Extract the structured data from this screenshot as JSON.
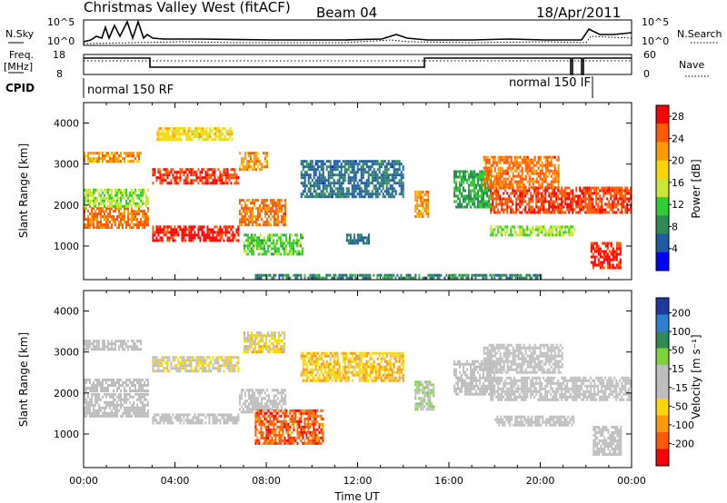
{
  "header": {
    "title": "Christmas Valley West (fitACF)",
    "beam": "Beam 04",
    "date": "18/Apr/2011"
  },
  "top_panels": {
    "nsky_label": "N.Sky",
    "nsearch_label": "N.Search",
    "nsky_ticks": [
      "10^5",
      "10^0"
    ],
    "nsearch_ticks": [
      "10^5",
      "10^0"
    ],
    "freq_label_1": "Freq.",
    "freq_label_2": "[MHz]",
    "freq_ticks": [
      "18",
      "8"
    ],
    "nave_label": "Nave",
    "nave_ticks": [
      "60",
      "0"
    ],
    "cpid_label": "CPID",
    "cpid_segments": [
      {
        "label": "normal 150 RF",
        "start_hour": 0.0,
        "end_hour": 21.7
      },
      {
        "label": "normal 150 IF",
        "start_hour": 21.7,
        "end_hour": 24.0
      }
    ]
  },
  "colors": {
    "power_scale": [
      "#0000ff",
      "#1e5aa0",
      "#2e8b57",
      "#32cd32",
      "#c8e632",
      "#ffd700",
      "#ff9900",
      "#ff5a00",
      "#ff0000"
    ],
    "velocity_scale": [
      "#1f3a9e",
      "#2d7fd0",
      "#2e8b57",
      "#7cd33a",
      "#bebebe",
      "#bebebe",
      "#ffd700",
      "#ff9900",
      "#ff5a00",
      "#ff0000"
    ]
  },
  "chart_data": [
    {
      "type": "heatmap",
      "panel": "power",
      "ylabel": "Slant Range [km]",
      "xlabel": "",
      "ylim": [
        180,
        4500
      ],
      "yticks": [
        "1000",
        "2000",
        "3000",
        "4000"
      ],
      "xlim_hours": [
        0,
        24
      ],
      "colorbar": {
        "label": "Power [dB]",
        "ticks": [
          "4",
          "8",
          "12",
          "16",
          "20",
          "24",
          "28"
        ],
        "range": [
          0,
          30
        ]
      },
      "bands": [
        {
          "t0": 0.0,
          "t1": 2.8,
          "r0": 1450,
          "r1": 1950,
          "value": 24
        },
        {
          "t0": 0.0,
          "t1": 2.8,
          "r0": 2000,
          "r1": 2400,
          "value": 14
        },
        {
          "t0": 0.0,
          "t1": 2.5,
          "r0": 3050,
          "r1": 3300,
          "value": 22
        },
        {
          "t0": 3.0,
          "t1": 6.8,
          "r0": 1150,
          "r1": 1500,
          "value": 28
        },
        {
          "t0": 6.8,
          "t1": 8.8,
          "r0": 1550,
          "r1": 2150,
          "value": 24
        },
        {
          "t0": 3.0,
          "t1": 6.8,
          "r0": 2550,
          "r1": 2900,
          "value": 26
        },
        {
          "t0": 6.8,
          "t1": 8.0,
          "r0": 2900,
          "r1": 3300,
          "value": 22
        },
        {
          "t0": 3.2,
          "t1": 6.5,
          "r0": 3600,
          "r1": 3900,
          "value": 18
        },
        {
          "t0": 7.0,
          "t1": 9.6,
          "r0": 800,
          "r1": 1300,
          "value": 12
        },
        {
          "t0": 9.5,
          "t1": 14.0,
          "r0": 2200,
          "r1": 3100,
          "value": 6
        },
        {
          "t0": 14.5,
          "t1": 15.1,
          "r0": 1750,
          "r1": 2350,
          "value": 22
        },
        {
          "t0": 16.2,
          "t1": 17.8,
          "r0": 1950,
          "r1": 2850,
          "value": 10
        },
        {
          "t0": 17.8,
          "t1": 24.0,
          "r0": 1800,
          "r1": 2450,
          "value": 26
        },
        {
          "t0": 17.5,
          "t1": 20.8,
          "r0": 2450,
          "r1": 3200,
          "value": 24
        },
        {
          "t0": 17.8,
          "t1": 21.5,
          "r0": 1250,
          "r1": 1500,
          "value": 14
        },
        {
          "t0": 22.2,
          "t1": 23.5,
          "r0": 500,
          "r1": 1100,
          "value": 28
        },
        {
          "t0": 11.5,
          "t1": 12.5,
          "r0": 1050,
          "r1": 1300,
          "value": 6
        },
        {
          "t0": 7.5,
          "t1": 20.0,
          "r0": 200,
          "r1": 320,
          "value": 8
        }
      ]
    },
    {
      "type": "heatmap",
      "panel": "velocity",
      "ylabel": "Slant Range [km]",
      "xlabel": "Time UT",
      "ylim": [
        180,
        4500
      ],
      "yticks": [
        "1000",
        "2000",
        "3000",
        "4000"
      ],
      "xticks": [
        "00:00",
        "04:00",
        "08:00",
        "12:00",
        "16:00",
        "20:00",
        "00:00"
      ],
      "xlim_hours": [
        0,
        24
      ],
      "colorbar": {
        "label": "Velocity [m s⁻¹]",
        "ticks": [
          "200",
          "100",
          "50",
          "15",
          "-15",
          "-50",
          "-100",
          "-200"
        ],
        "range": [
          -250,
          250
        ]
      },
      "bands": [
        {
          "t0": 0.0,
          "t1": 2.8,
          "r0": 1450,
          "r1": 2000,
          "value": 0
        },
        {
          "t0": 0.0,
          "t1": 2.8,
          "r0": 2050,
          "r1": 2350,
          "value": 0
        },
        {
          "t0": 0.0,
          "t1": 2.5,
          "r0": 3050,
          "r1": 3300,
          "value": 0
        },
        {
          "t0": 3.0,
          "t1": 6.8,
          "r0": 1250,
          "r1": 1500,
          "value": 0
        },
        {
          "t0": 6.8,
          "t1": 8.8,
          "r0": 1550,
          "r1": 2100,
          "value": 0
        },
        {
          "t0": 3.0,
          "t1": 6.8,
          "r0": 2550,
          "r1": 2900,
          "value": -40
        },
        {
          "t0": 7.0,
          "t1": 8.8,
          "r0": 3000,
          "r1": 3500,
          "value": -60
        },
        {
          "t0": 7.5,
          "t1": 10.5,
          "r0": 800,
          "r1": 1600,
          "value": -180
        },
        {
          "t0": 9.5,
          "t1": 14.0,
          "r0": 2300,
          "r1": 3000,
          "value": -90
        },
        {
          "t0": 14.5,
          "t1": 15.3,
          "r0": 1600,
          "r1": 2300,
          "value": 40
        },
        {
          "t0": 16.2,
          "t1": 18.0,
          "r0": 1950,
          "r1": 2800,
          "value": 0
        },
        {
          "t0": 17.8,
          "t1": 24.0,
          "r0": 1850,
          "r1": 2400,
          "value": 0
        },
        {
          "t0": 17.5,
          "t1": 21.0,
          "r0": 2500,
          "r1": 3200,
          "value": 0
        },
        {
          "t0": 18.0,
          "t1": 21.5,
          "r0": 1250,
          "r1": 1450,
          "value": 0
        },
        {
          "t0": 22.3,
          "t1": 23.5,
          "r0": 500,
          "r1": 1200,
          "value": 0
        }
      ]
    }
  ]
}
